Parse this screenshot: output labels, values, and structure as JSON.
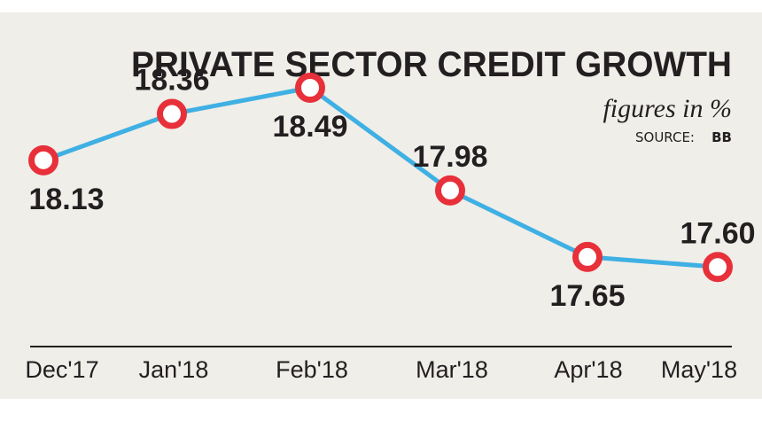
{
  "title": "PRIVATE SECTOR CREDIT GROWTH",
  "subtitle": "figures in %",
  "source_label": "SOURCE:",
  "source_value": "BB",
  "colors": {
    "background": "#efeee9",
    "line": "#3fb0e3",
    "marker_ring": "#e8303a",
    "marker_fill": "#ffffff",
    "axis": "#231f20",
    "text": "#231f20"
  },
  "chart_data": {
    "type": "line",
    "categories": [
      "Dec'17",
      "Jan'18",
      "Feb'18",
      "Mar'18",
      "Apr'18",
      "May'18"
    ],
    "series": [
      {
        "values": [
          18.13,
          18.36,
          18.49,
          17.98,
          17.65,
          17.6
        ],
        "labels": [
          "18.13",
          "18.36",
          "18.49",
          "17.98",
          "17.65",
          "17.60"
        ]
      }
    ],
    "title": "PRIVATE SECTOR CREDIT GROWTH",
    "subtitle": "figures in %",
    "ylim": [
      17.5,
      18.6
    ],
    "grid": false,
    "markers": true
  }
}
